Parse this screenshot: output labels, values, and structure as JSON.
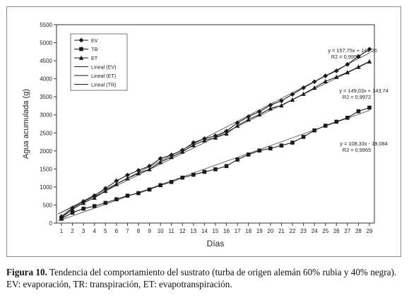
{
  "chart_data": {
    "type": "line",
    "title": "",
    "xlabel": "Días",
    "ylabel": "Agua acumulada (g)",
    "xlim": [
      1,
      29
    ],
    "ylim": [
      0,
      5500
    ],
    "x_ticks": [
      1,
      2,
      3,
      4,
      5,
      6,
      7,
      8,
      9,
      10,
      11,
      12,
      13,
      14,
      15,
      16,
      17,
      18,
      19,
      20,
      21,
      22,
      23,
      24,
      25,
      26,
      27,
      28,
      29
    ],
    "y_ticks": [
      0,
      500,
      1000,
      1500,
      2000,
      2500,
      3000,
      3500,
      4000,
      4500,
      5000,
      5500
    ],
    "grid": false,
    "legend": {
      "position": "top-left",
      "entries": [
        "EV",
        "TR",
        "ET",
        "Lineal (EV)",
        "Lineal (ET)",
        "Lineal (TR)"
      ]
    },
    "x": [
      1,
      2,
      3,
      4,
      5,
      6,
      7,
      8,
      9,
      10,
      11,
      12,
      13,
      14,
      15,
      16,
      17,
      18,
      19,
      20,
      21,
      22,
      23,
      24,
      25,
      26,
      27,
      28,
      29
    ],
    "series": [
      {
        "name": "EV",
        "marker": "diamond",
        "values": [
          180,
          420,
          600,
          760,
          960,
          1170,
          1330,
          1460,
          1580,
          1790,
          1890,
          2020,
          2230,
          2340,
          2420,
          2550,
          2780,
          2950,
          3090,
          3270,
          3390,
          3570,
          3750,
          3920,
          4080,
          4220,
          4400,
          4620,
          4820
        ]
      },
      {
        "name": "TR",
        "marker": "square",
        "values": [
          120,
          290,
          400,
          470,
          560,
          660,
          760,
          830,
          930,
          1050,
          1140,
          1260,
          1340,
          1420,
          1490,
          1580,
          1760,
          1900,
          2010,
          2070,
          2150,
          2230,
          2390,
          2570,
          2700,
          2810,
          2920,
          3100,
          3200
        ]
      },
      {
        "name": "ET",
        "marker": "triangle",
        "values": [
          150,
          380,
          560,
          700,
          890,
          1080,
          1240,
          1380,
          1490,
          1690,
          1830,
          1980,
          2160,
          2290,
          2370,
          2480,
          2700,
          2870,
          3010,
          3180,
          3260,
          3420,
          3580,
          3750,
          3930,
          4050,
          4180,
          4330,
          4480
        ]
      }
    ],
    "trendlines": [
      {
        "name": "Lineal (EV)",
        "slope": 157.75,
        "intercept": 141.26
      },
      {
        "name": "Lineal (ET)",
        "slope": 149.03,
        "intercept": 143.74
      },
      {
        "name": "Lineal (TR)",
        "slope": 108.33,
        "intercept": -19.084
      }
    ],
    "annotations": [
      {
        "equation": "y = 157,75x + 141,26",
        "r2": "R2 = 0,9958"
      },
      {
        "equation": "y = 149,03x + 143,74",
        "r2": "R2 = 0,9972"
      },
      {
        "equation": "y = 108,33x - 19,084",
        "r2": "R2 = 0,9965"
      }
    ]
  },
  "caption": {
    "label": "Figura 10.",
    "text": " Tendencia del comportamiento del sustrato (turba de origen alemán 60% rubia y 40% negra). EV: evaporación, TR: transpiración, ET: evapotranspiración."
  }
}
